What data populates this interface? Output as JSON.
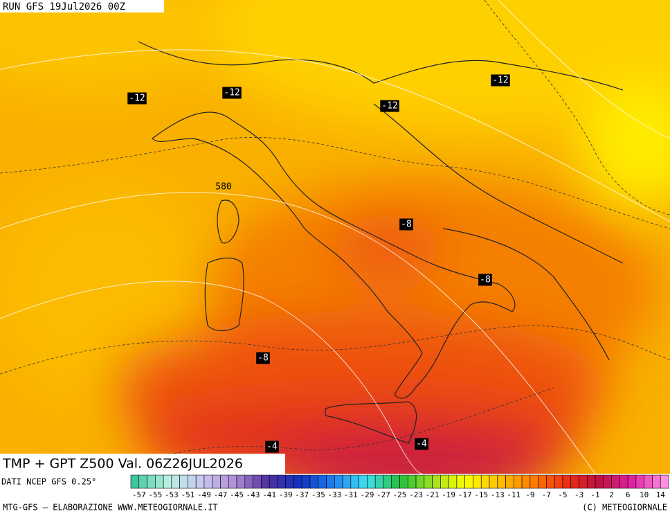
{
  "header": {
    "run": "RUN GFS 19Jul2026 00Z"
  },
  "map": {
    "title": "TMP + GPT Z500 Val. 06Z26JUL2026",
    "contour_labels": [
      -12,
      -12,
      -12,
      -12,
      580,
      -8,
      -8,
      -8,
      -4,
      -4
    ]
  },
  "colorbar": {
    "source": "DATI NCEP GFS 0.25°",
    "labels": [
      -57,
      -55,
      -53,
      -51,
      -49,
      -47,
      -45,
      -43,
      -41,
      -39,
      -37,
      -35,
      -33,
      -31,
      -29,
      -27,
      -25,
      -23,
      -21,
      -19,
      -17,
      -15,
      -13,
      -11,
      -9,
      -7,
      -5,
      -3,
      -1,
      2,
      6,
      10,
      14
    ]
  },
  "footer": {
    "left": "MTG-GFS – ELABORAZIONE WWW.METEOGIORNALE.IT",
    "right": "(C) METEOGIORNALE"
  }
}
